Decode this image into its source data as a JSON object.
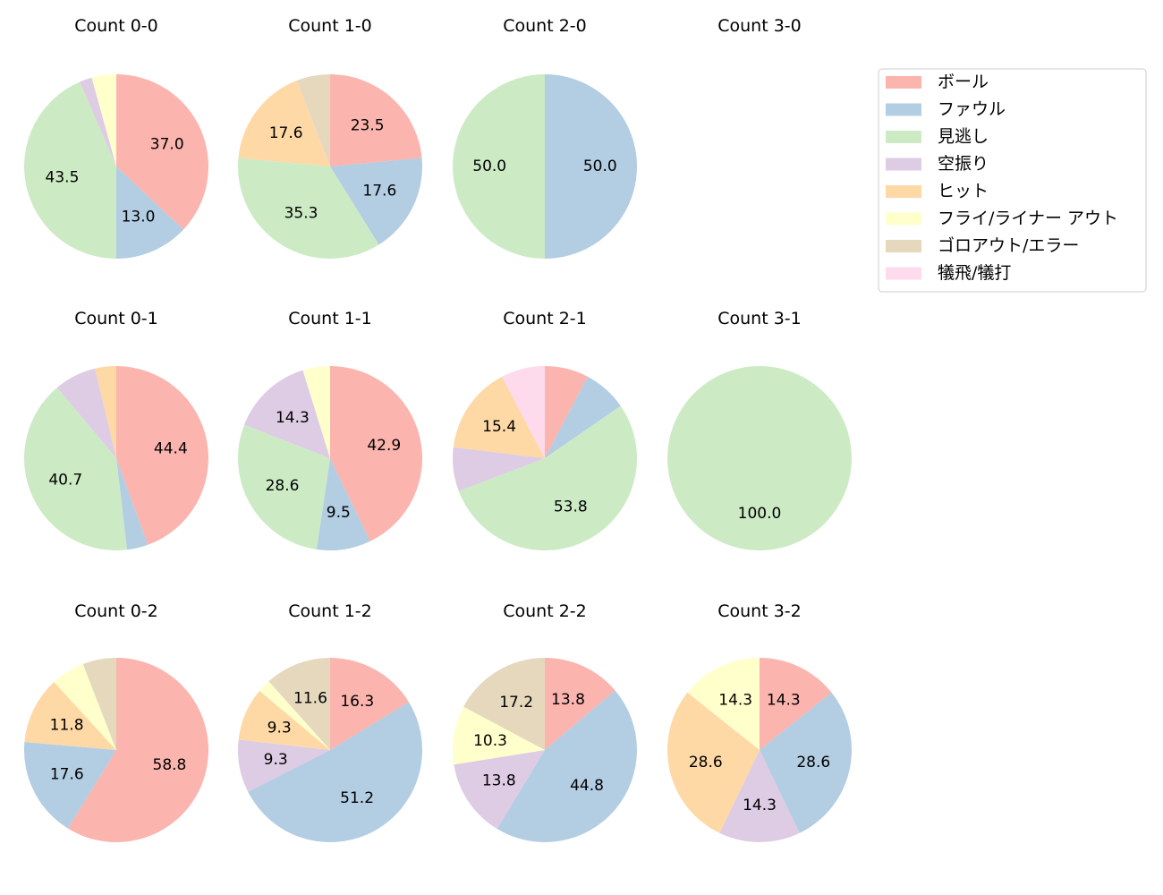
{
  "chart_data": {
    "type": "pie",
    "colors": [
      "#fbb4ae",
      "#b3cde3",
      "#ccebc5",
      "#decbe4",
      "#fed9a6",
      "#ffffcc",
      "#e5d8bd",
      "#fddaec"
    ],
    "legend": {
      "placement": "top-right",
      "entries": [
        "ボール",
        "ファウル",
        "見逃し",
        "空振り",
        "ヒット",
        "フライ/ライナー アウト",
        "ゴロアウト/エラー",
        "犠飛/犠打"
      ]
    },
    "start_angle_deg": 90,
    "direction": "clockwise",
    "label_format": "%.1f",
    "pies": [
      {
        "title": "Count 0-0",
        "values": [
          37.0,
          13.0,
          43.5,
          2.2,
          0,
          4.3,
          0,
          0
        ]
      },
      {
        "title": "Count 1-0",
        "values": [
          23.5,
          17.6,
          35.3,
          0,
          17.6,
          0,
          5.9,
          0
        ]
      },
      {
        "title": "Count 2-0",
        "values": [
          0,
          50.0,
          50.0,
          0,
          0,
          0,
          0,
          0
        ]
      },
      {
        "title": "Count 3-0",
        "values": []
      },
      {
        "title": "Count 0-1",
        "values": [
          44.4,
          3.7,
          40.7,
          7.4,
          3.7,
          0,
          0,
          0
        ]
      },
      {
        "title": "Count 1-1",
        "values": [
          42.9,
          9.5,
          28.6,
          14.3,
          0,
          4.8,
          0,
          0
        ]
      },
      {
        "title": "Count 2-1",
        "values": [
          7.7,
          7.7,
          53.8,
          7.7,
          15.4,
          0,
          0,
          7.7
        ]
      },
      {
        "title": "Count 3-1",
        "values": [
          0,
          0,
          100.0,
          0,
          0,
          0,
          0,
          0
        ]
      },
      {
        "title": "Count 0-2",
        "values": [
          58.8,
          17.6,
          0,
          0,
          11.8,
          5.9,
          5.9,
          0
        ]
      },
      {
        "title": "Count 1-2",
        "values": [
          16.3,
          51.2,
          0,
          9.3,
          9.3,
          2.3,
          11.6,
          0
        ]
      },
      {
        "title": "Count 2-2",
        "values": [
          13.8,
          44.8,
          0,
          13.8,
          0,
          10.3,
          17.2,
          0
        ]
      },
      {
        "title": "Count 3-2",
        "values": [
          14.3,
          28.6,
          0,
          14.3,
          28.6,
          14.3,
          0,
          0
        ]
      }
    ]
  }
}
